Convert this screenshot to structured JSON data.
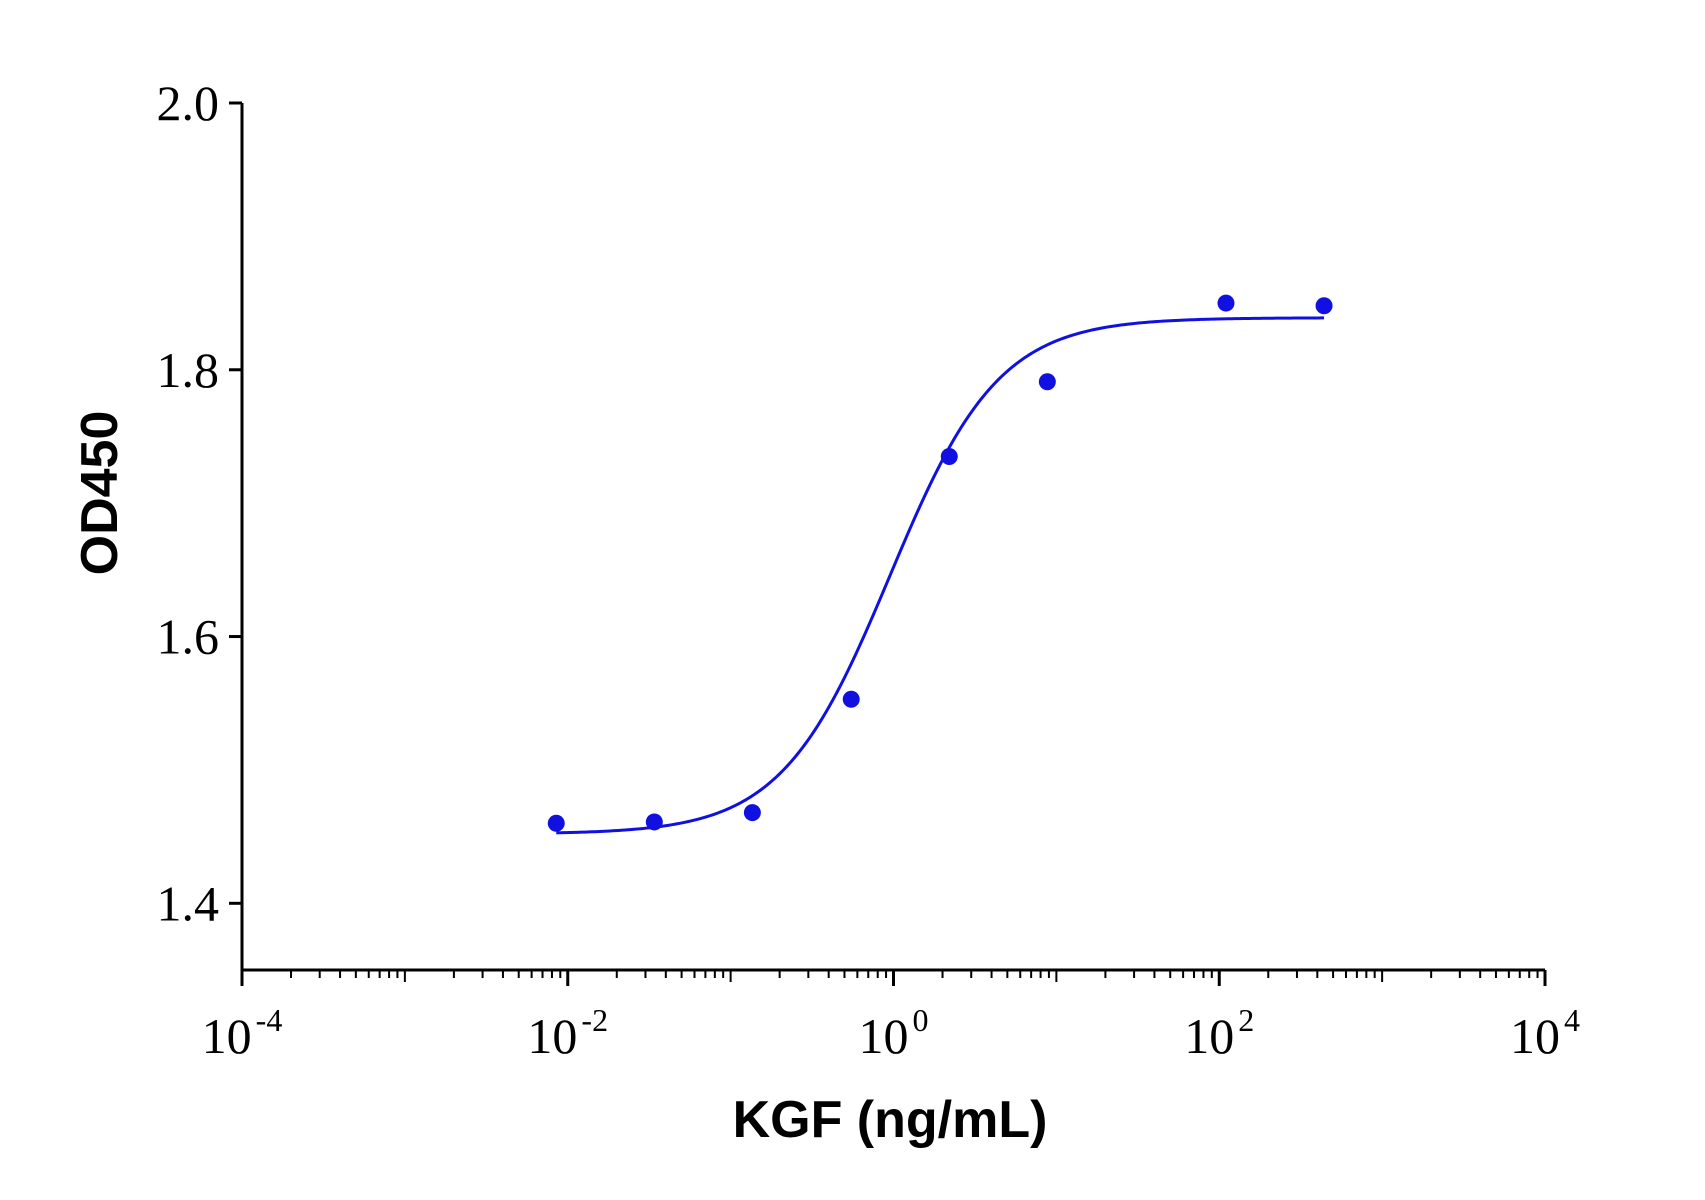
{
  "chart_data": {
    "type": "scatter",
    "xlabel": "KGF (ng/mL)",
    "ylabel": "OD450",
    "x_scale": "log",
    "xlim": [
      0.0001,
      10000
    ],
    "ylim": [
      1.35,
      2.0
    ],
    "x_ticks": [
      {
        "value": 0.0001,
        "base": "10",
        "exp": "-4"
      },
      {
        "value": 0.01,
        "base": "10",
        "exp": "-2"
      },
      {
        "value": 1,
        "base": "10",
        "exp": "0"
      },
      {
        "value": 100,
        "base": "10",
        "exp": "2"
      },
      {
        "value": 10000,
        "base": "10",
        "exp": "4"
      }
    ],
    "y_ticks": [
      "1.4",
      "1.6",
      "1.8",
      "2.0"
    ],
    "grid": false,
    "color": "#1010e0",
    "series": [
      {
        "x": [
          0.0085,
          0.034,
          0.136,
          0.55,
          2.2,
          8.8,
          110,
          440
        ],
        "y": [
          1.46,
          1.461,
          1.468,
          1.553,
          1.735,
          1.791,
          1.85,
          1.848
        ]
      }
    ],
    "fit": {
      "bottom": 1.452,
      "top": 1.839,
      "ec50": 0.95,
      "hill": 1.3,
      "x_range": [
        0.0085,
        440
      ]
    }
  }
}
